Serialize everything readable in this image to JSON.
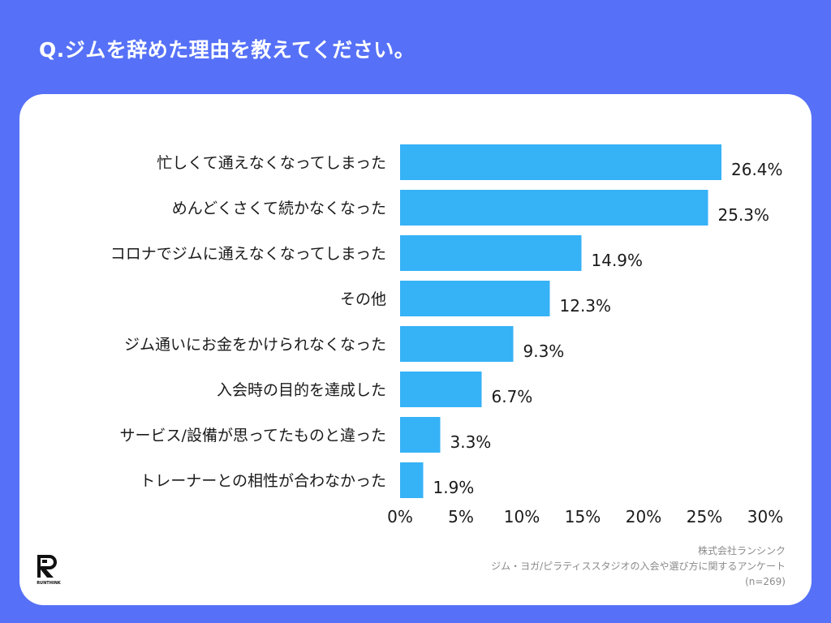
{
  "title": "Q.ジムを辞めた理由を教えてください。",
  "chart_data": {
    "type": "bar",
    "orientation": "horizontal",
    "categories": [
      "忙しくて通えなくなってしまった",
      "めんどくさくて続かなくなった",
      "コロナでジムに通えなくなってしまった",
      "その他",
      "ジム通いにお金をかけられなくなった",
      "入会時の目的を達成した",
      "サービス/設備が思ってたものと違った",
      "トレーナーとの相性が合わなかった"
    ],
    "values": [
      26.4,
      25.3,
      14.9,
      12.3,
      9.3,
      6.7,
      3.3,
      1.9
    ],
    "value_labels": [
      "26.4%",
      "25.3%",
      "14.9%",
      "12.3%",
      "9.3%",
      "6.7%",
      "3.3%",
      "1.9%"
    ],
    "xlim": [
      0,
      30
    ],
    "ticks": [
      0,
      5,
      10,
      15,
      20,
      25,
      30
    ],
    "tick_labels": [
      "0%",
      "5%",
      "10%",
      "15%",
      "20%",
      "25%",
      "30%"
    ],
    "grid": false,
    "bar_color": "#36b2f7"
  },
  "source": {
    "company": "株式会社ランシンク",
    "survey": "ジム・ヨガ/ピラティススタジオの入会や選び方に関するアンケート",
    "sample": "(n=269)"
  },
  "logo": {
    "text": "RUNTHINK",
    "icon": "runthink-logo"
  },
  "colors": {
    "background": "#5671f7",
    "card": "#ffffff",
    "bar": "#36b2f7"
  }
}
